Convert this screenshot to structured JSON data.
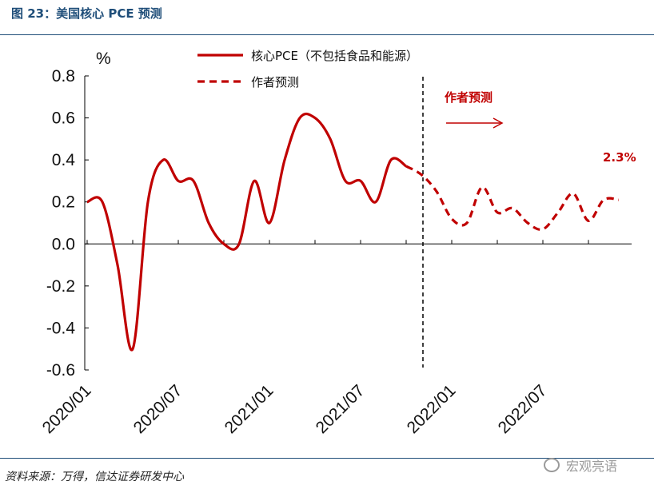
{
  "header": {
    "title": "图 23：美国核心 PCE 预测"
  },
  "footer": {
    "source": "资料来源：万得，信达证券研发中心",
    "watermark": "宏观亮语"
  },
  "colors": {
    "series": "#c00000",
    "title": "#1f4e79",
    "axis": "#000000"
  },
  "chart_data": {
    "type": "line",
    "unit": "%",
    "ylim": [
      -0.6,
      0.8
    ],
    "yticks": [
      "0.8",
      "0.6",
      "0.4",
      "0.2",
      "0.0",
      "-0.2",
      "-0.4",
      "-0.6"
    ],
    "ytick_values": [
      0.8,
      0.6,
      0.4,
      0.2,
      0.0,
      -0.2,
      -0.4,
      -0.6
    ],
    "xticks": [
      "2020/01",
      "2020/07",
      "2021/01",
      "2021/07",
      "2022/01",
      "2022/07"
    ],
    "grid": false,
    "legend_position": "top-center",
    "series": [
      {
        "name": "核心PCE（不包括食品和能源）",
        "style": "solid",
        "x": [
          "2020/01",
          "2020/02",
          "2020/03",
          "2020/04",
          "2020/05",
          "2020/06",
          "2020/07",
          "2020/08",
          "2020/09",
          "2020/10",
          "2020/11",
          "2020/12",
          "2021/01",
          "2021/02",
          "2021/03",
          "2021/04",
          "2021/05",
          "2021/06",
          "2021/07",
          "2021/08",
          "2021/09",
          "2021/10"
        ],
        "values": [
          0.2,
          0.2,
          -0.1,
          -0.5,
          0.2,
          0.4,
          0.3,
          0.3,
          0.1,
          0.0,
          0.0,
          0.3,
          0.1,
          0.4,
          0.6,
          0.6,
          0.5,
          0.3,
          0.3,
          0.2,
          0.4,
          0.37
        ]
      },
      {
        "name": "作者预测",
        "style": "dashed",
        "x": [
          "2021/10",
          "2021/11",
          "2021/12",
          "2022/01",
          "2022/02",
          "2022/03",
          "2022/04",
          "2022/05",
          "2022/06",
          "2022/07",
          "2022/08",
          "2022/09",
          "2022/10",
          "2022/11",
          "2022/12"
        ],
        "values": [
          0.37,
          0.33,
          0.25,
          0.12,
          0.1,
          0.27,
          0.15,
          0.17,
          0.1,
          0.07,
          0.15,
          0.24,
          0.11,
          0.21,
          0.21
        ]
      }
    ],
    "forecast_start": "2021/11",
    "annotations": {
      "forecast_label": "作者预测",
      "end_value_label": "2.3%"
    }
  }
}
